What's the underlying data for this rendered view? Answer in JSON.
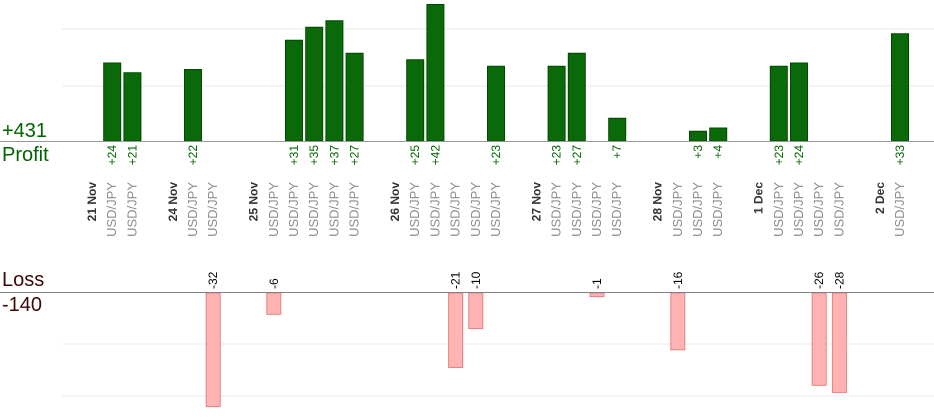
{
  "summary": {
    "profit_total": "+431",
    "profit_label": "Profit",
    "loss_label": "Loss",
    "loss_total": "-140"
  },
  "colors": {
    "profit_bar": "#0a6a0a",
    "profit_bar_edge": "#004a00",
    "loss_bar": "#ffb3b3",
    "loss_bar_edge": "#e88080",
    "profit_text": "#006400",
    "loss_text": "#000000",
    "date_text": "#333333",
    "instrument_text": "#8c8c8c",
    "gridline": "#e8e8e8",
    "axis": "#999999"
  },
  "chart_data": {
    "type": "bar",
    "profit_ylim": [
      0,
      40
    ],
    "loss_ylim": [
      -32,
      0
    ],
    "grid": true,
    "columns": [
      {
        "kind": "date",
        "label": "21 Nov"
      },
      {
        "kind": "trade",
        "label": "USD/JPY",
        "value": 24,
        "text": "+24"
      },
      {
        "kind": "trade",
        "label": "USD/JPY",
        "value": 21,
        "text": "+21"
      },
      {
        "kind": "blank"
      },
      {
        "kind": "date",
        "label": "24 Nov"
      },
      {
        "kind": "trade",
        "label": "USD/JPY",
        "value": 22,
        "text": "+22"
      },
      {
        "kind": "trade",
        "label": "USD/JPY",
        "value": -32,
        "text": "-32"
      },
      {
        "kind": "blank"
      },
      {
        "kind": "date",
        "label": "25 Nov"
      },
      {
        "kind": "trade",
        "label": "USD/JPY",
        "value": -6,
        "text": "-6"
      },
      {
        "kind": "trade",
        "label": "USD/JPY",
        "value": 31,
        "text": "+31"
      },
      {
        "kind": "trade",
        "label": "USD/JPY",
        "value": 35,
        "text": "+35"
      },
      {
        "kind": "trade",
        "label": "USD/JPY",
        "value": 37,
        "text": "+37"
      },
      {
        "kind": "trade",
        "label": "USD/JPY",
        "value": 27,
        "text": "+27"
      },
      {
        "kind": "blank"
      },
      {
        "kind": "date",
        "label": "26 Nov"
      },
      {
        "kind": "trade",
        "label": "USD/JPY",
        "value": 25,
        "text": "+25"
      },
      {
        "kind": "trade",
        "label": "USD/JPY",
        "value": 42,
        "text": "+42"
      },
      {
        "kind": "trade",
        "label": "USD/JPY",
        "value": -21,
        "text": "-21"
      },
      {
        "kind": "trade",
        "label": "USD/JPY",
        "value": -10,
        "text": "-10"
      },
      {
        "kind": "trade",
        "label": "USD/JPY",
        "value": 23,
        "text": "+23"
      },
      {
        "kind": "blank"
      },
      {
        "kind": "date",
        "label": "27 Nov"
      },
      {
        "kind": "trade",
        "label": "USD/JPY",
        "value": 23,
        "text": "+23"
      },
      {
        "kind": "trade",
        "label": "USD/JPY",
        "value": 27,
        "text": "+27"
      },
      {
        "kind": "trade",
        "label": "USD/JPY",
        "value": -1,
        "text": "-1"
      },
      {
        "kind": "trade",
        "label": "USD/JPY",
        "value": 7,
        "text": "+7"
      },
      {
        "kind": "blank"
      },
      {
        "kind": "date",
        "label": "28 Nov"
      },
      {
        "kind": "trade",
        "label": "USD/JPY",
        "value": -16,
        "text": "-16"
      },
      {
        "kind": "trade",
        "label": "USD/JPY",
        "value": 3,
        "text": "+3"
      },
      {
        "kind": "trade",
        "label": "USD/JPY",
        "value": 4,
        "text": "+4"
      },
      {
        "kind": "blank"
      },
      {
        "kind": "date",
        "label": "1 Dec"
      },
      {
        "kind": "trade",
        "label": "USD/JPY",
        "value": 23,
        "text": "+23"
      },
      {
        "kind": "trade",
        "label": "USD/JPY",
        "value": 24,
        "text": "+24"
      },
      {
        "kind": "trade",
        "label": "USD/JPY",
        "value": -26,
        "text": "-26"
      },
      {
        "kind": "trade",
        "label": "USD/JPY",
        "value": -28,
        "text": "-28"
      },
      {
        "kind": "blank"
      },
      {
        "kind": "date",
        "label": "2 Dec"
      },
      {
        "kind": "trade",
        "label": "USD/JPY",
        "value": 33,
        "text": "+33"
      }
    ]
  }
}
